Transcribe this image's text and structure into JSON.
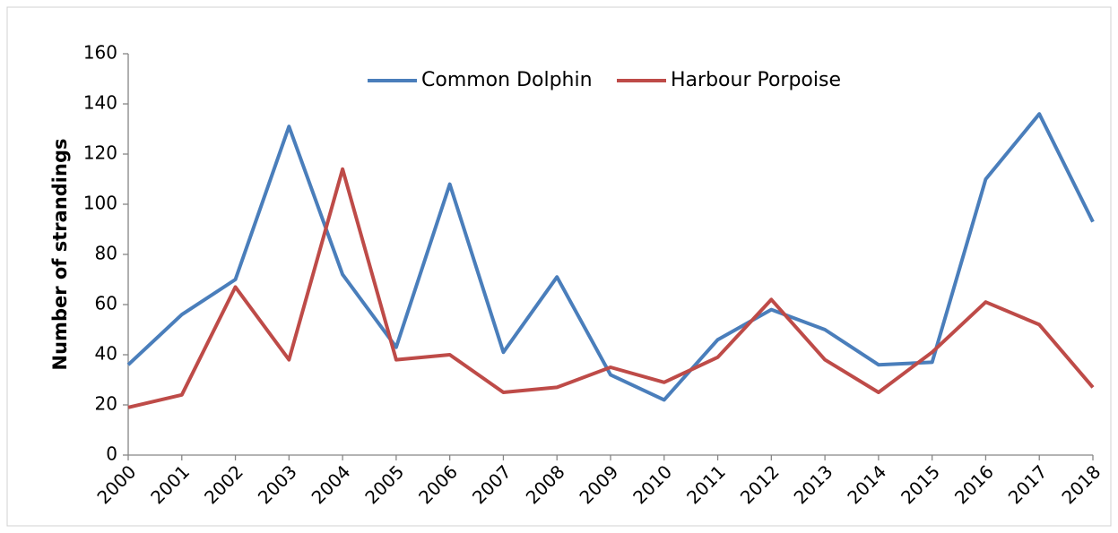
{
  "chart_data": {
    "type": "line",
    "ylabel": "Number of strandings",
    "categories": [
      "2000",
      "2001",
      "2002",
      "2003",
      "2004",
      "2005",
      "2006",
      "2007",
      "2008",
      "2009",
      "2010",
      "2011",
      "2012",
      "2013",
      "2014",
      "2015",
      "2016",
      "2017",
      "2018"
    ],
    "series": [
      {
        "name": "Common Dolphin",
        "color": "#4a7ebb",
        "values": [
          36,
          56,
          70,
          131,
          72,
          43,
          108,
          41,
          71,
          32,
          22,
          46,
          58,
          50,
          36,
          37,
          110,
          136,
          93
        ]
      },
      {
        "name": "Harbour Porpoise",
        "color": "#be4b48",
        "values": [
          19,
          24,
          67,
          38,
          114,
          38,
          40,
          25,
          27,
          35,
          29,
          39,
          62,
          38,
          25,
          41,
          61,
          52,
          27
        ]
      }
    ],
    "ylim": [
      0,
      160
    ],
    "yticks": [
      0,
      20,
      40,
      60,
      80,
      100,
      120,
      140,
      160
    ],
    "grid": false,
    "legend": "top"
  }
}
